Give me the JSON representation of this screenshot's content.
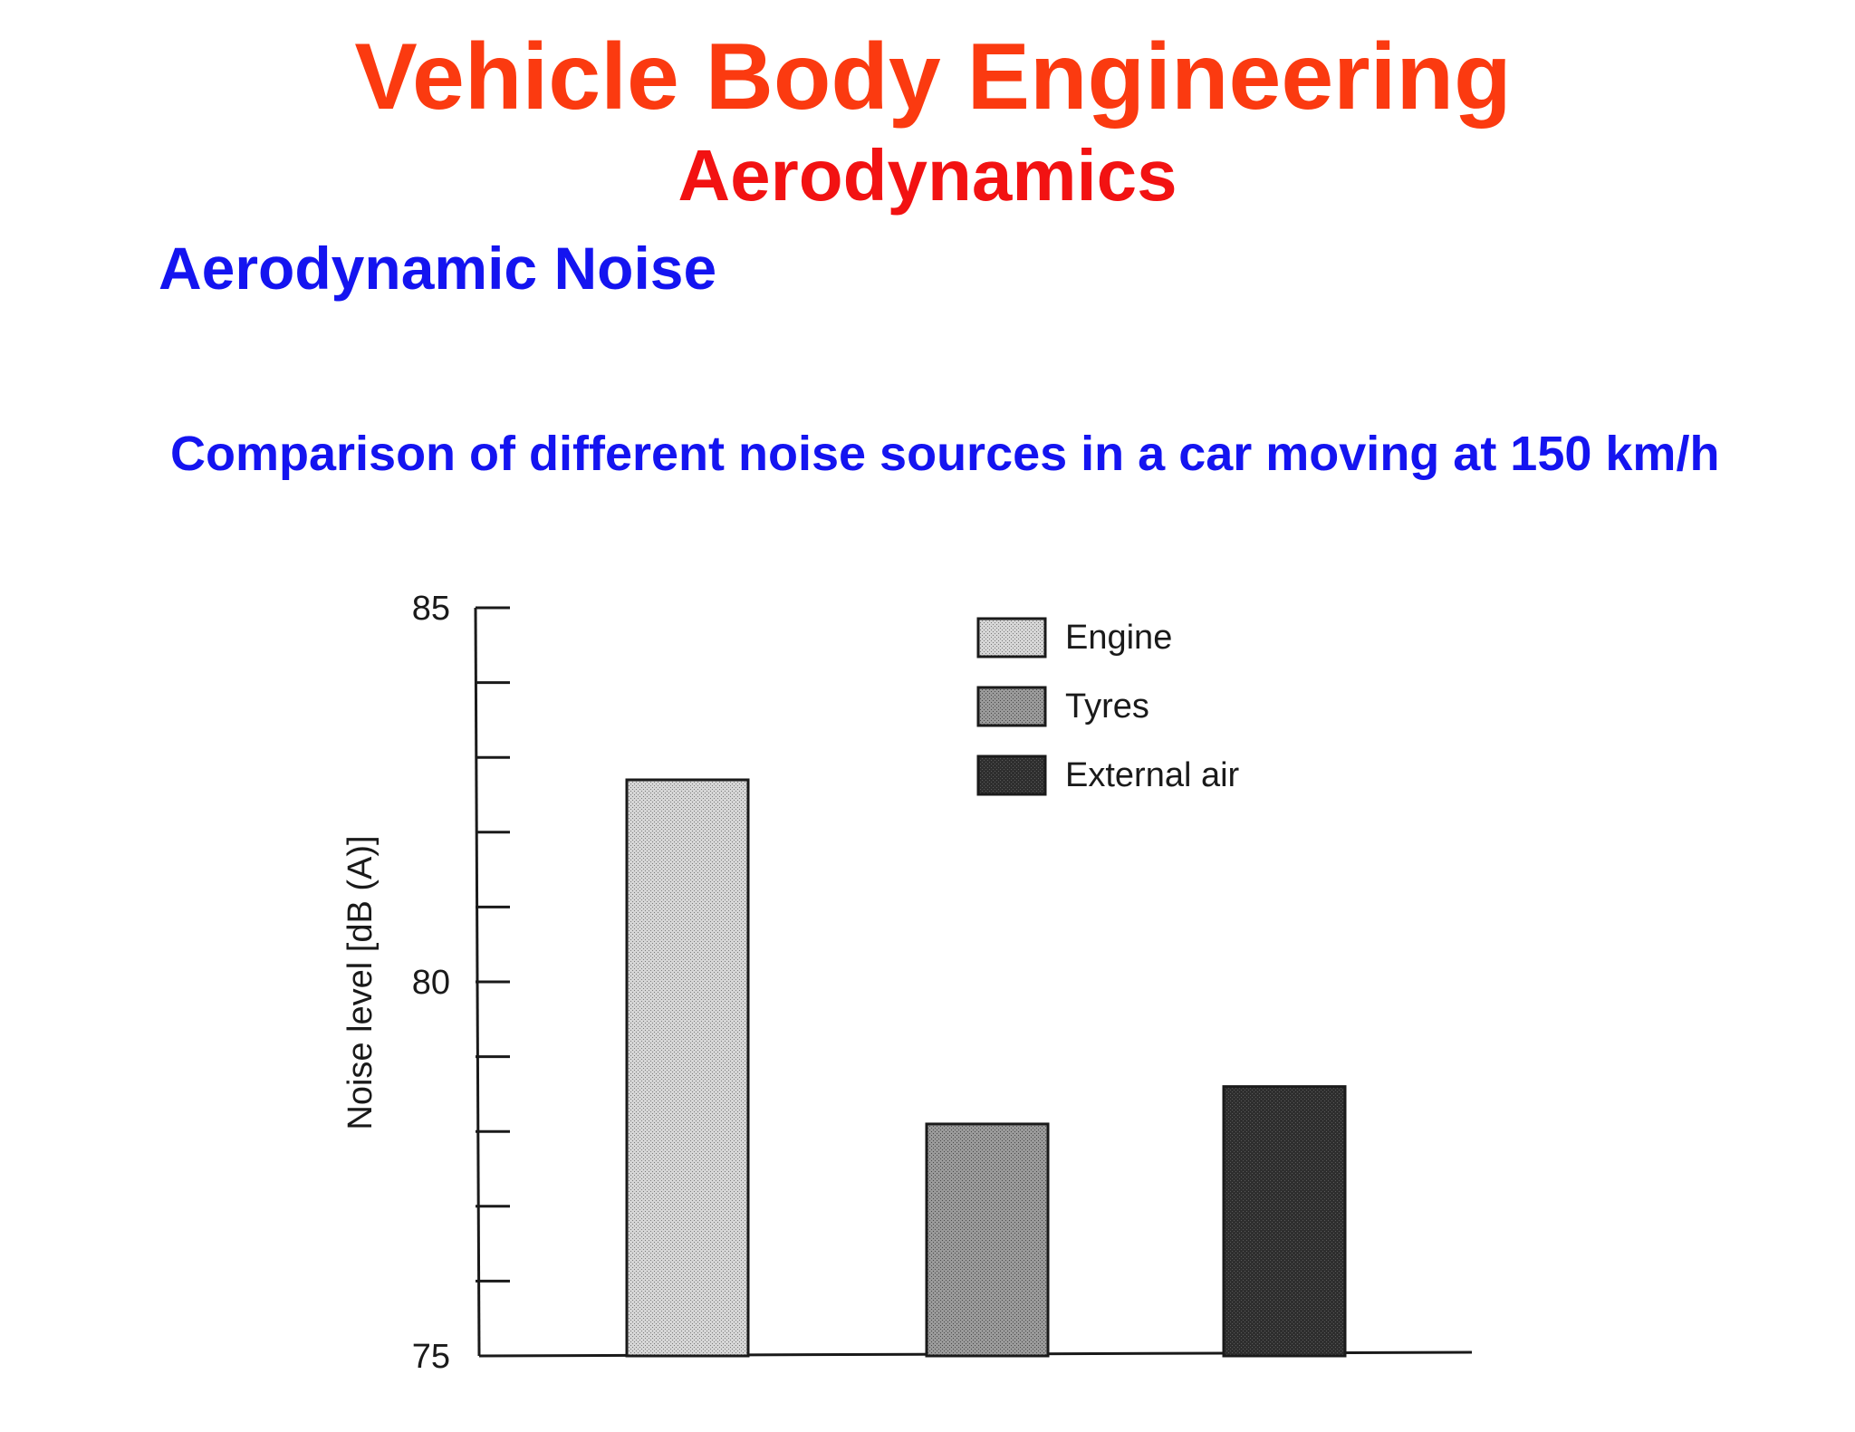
{
  "slide": {
    "title": "Vehicle Body Engineering",
    "subtitle": "Aerodynamics",
    "section": "Aerodynamic Noise",
    "caption": "Comparison of different noise sources in a car moving at 150 km/h"
  },
  "colors": {
    "title": "#fb3a10",
    "subtitle": "#f21212",
    "heading": "#1414f0"
  },
  "chart_data": {
    "type": "bar",
    "categories": [
      "Engine",
      "Tyres",
      "External air"
    ],
    "values": [
      82.7,
      78.1,
      78.6
    ],
    "ylabel": "Noise level [dB (A)]",
    "ylim": [
      75,
      85
    ],
    "yticks_labeled": [
      "75",
      "80",
      "85"
    ],
    "minor_ticks_per_unit": 1,
    "legend": {
      "placement": "top-center",
      "entries": [
        {
          "label": "Engine",
          "color": "#c4c4c4"
        },
        {
          "label": "Tyres",
          "color": "#8c8c8c"
        },
        {
          "label": "External air",
          "color": "#2c2c2c"
        }
      ]
    },
    "grid": false
  }
}
